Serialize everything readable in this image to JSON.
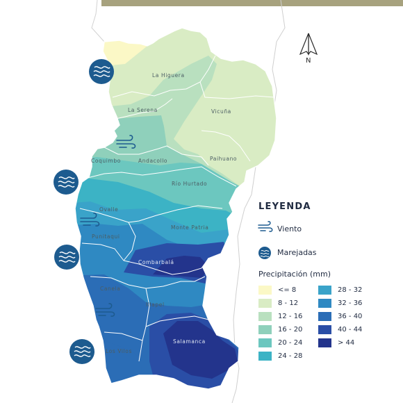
{
  "colors": {
    "topbar": "#a7a27e",
    "border": "#ffffff",
    "sea_line": "#c9c9c9",
    "icon_bg": "#1d5b8f",
    "ramp": [
      "#fbf8c6",
      "#d9ecc4",
      "#b9e0bf",
      "#8fd0bb",
      "#6cc7bf",
      "#3cb3c5",
      "#3aa3c9",
      "#2f89c2",
      "#2b6db6",
      "#2a4ea6",
      "#23348c"
    ]
  },
  "north": {
    "label": "N"
  },
  "places": [
    {
      "id": "la-higuera",
      "label": "La Higuera"
    },
    {
      "id": "la-serena",
      "label": "La Serena"
    },
    {
      "id": "vicuna",
      "label": "Vicuña"
    },
    {
      "id": "coquimbo",
      "label": "Coquimbo"
    },
    {
      "id": "andacollo",
      "label": "Andacollo"
    },
    {
      "id": "paihuano",
      "label": "Paihuano"
    },
    {
      "id": "rio-hurtado",
      "label": "Río Hurtado"
    },
    {
      "id": "ovalle",
      "label": "Ovalle"
    },
    {
      "id": "monte-patria",
      "label": "Monte Patria"
    },
    {
      "id": "punitaqui",
      "label": "Punitaqui"
    },
    {
      "id": "combarbala",
      "label": "Combarbalá"
    },
    {
      "id": "canela",
      "label": "Canela"
    },
    {
      "id": "illapel",
      "label": "Illapel"
    },
    {
      "id": "salamanca",
      "label": "Salamanca"
    },
    {
      "id": "los-vilos",
      "label": "Los Vilos"
    }
  ],
  "legend": {
    "title": "LEYENDA",
    "wind_label": "Viento",
    "surge_label": "Marejadas",
    "precip_title": "Precipitación (mm)",
    "classes": [
      "<= 8",
      "8 - 12",
      "12 - 16",
      "16 - 20",
      "20 - 24",
      "24 - 28",
      "28 - 32",
      "32 - 36",
      "36 - 40",
      "40 - 44",
      "> 44"
    ]
  }
}
